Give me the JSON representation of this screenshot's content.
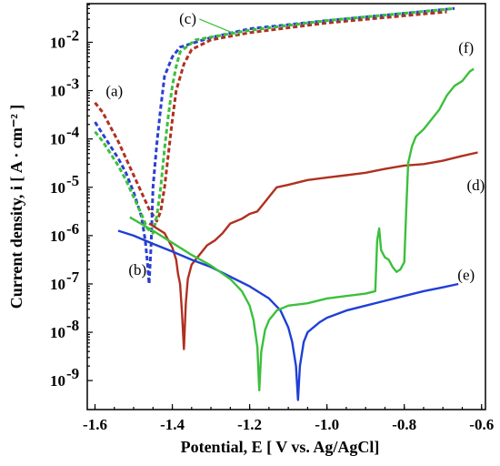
{
  "chart_data": {
    "type": "line",
    "xlabel": "Potential, E [ V vs. Ag/AgCl]",
    "ylabel": "Current density, i [ A · cm⁻² ]",
    "xlim": [
      -1.62,
      -0.59
    ],
    "ylim_log10": [
      -9.6,
      -1.2
    ],
    "y_scale": "log",
    "grid": false,
    "x_ticks": [
      {
        "value": -1.6,
        "label": "-1.6"
      },
      {
        "value": -1.4,
        "label": "-1.4"
      },
      {
        "value": -1.2,
        "label": "-1.2"
      },
      {
        "value": -1.0,
        "label": "-1.0"
      },
      {
        "value": -0.8,
        "label": "-0.8"
      },
      {
        "value": -0.6,
        "label": "-0.6"
      }
    ],
    "y_ticks": [
      {
        "exp": -2,
        "base": "10",
        "sup": "-2"
      },
      {
        "exp": -3,
        "base": "10",
        "sup": "-3"
      },
      {
        "exp": -4,
        "base": "10",
        "sup": "-4"
      },
      {
        "exp": -5,
        "base": "10",
        "sup": "-5"
      },
      {
        "exp": -6,
        "base": "10",
        "sup": "-6"
      },
      {
        "exp": -7,
        "base": "10",
        "sup": "-7"
      },
      {
        "exp": -8,
        "base": "10",
        "sup": "-8"
      },
      {
        "exp": -9,
        "base": "10",
        "sup": "-9"
      }
    ],
    "series": [
      {
        "label": "(a)",
        "color": "#b0301f",
        "style": "dashed",
        "points": [
          [
            -1.6,
            -3.25
          ],
          [
            -1.58,
            -3.45
          ],
          [
            -1.56,
            -3.75
          ],
          [
            -1.54,
            -4.05
          ],
          [
            -1.52,
            -4.4
          ],
          [
            -1.5,
            -4.75
          ],
          [
            -1.48,
            -5.1
          ],
          [
            -1.46,
            -5.45
          ],
          [
            -1.44,
            -5.7
          ],
          [
            -1.43,
            -5.5
          ],
          [
            -1.42,
            -5.0
          ],
          [
            -1.41,
            -4.3
          ],
          [
            -1.4,
            -3.6
          ],
          [
            -1.39,
            -3.0
          ],
          [
            -1.37,
            -2.45
          ],
          [
            -1.35,
            -2.15
          ],
          [
            -1.3,
            -1.95
          ],
          [
            -1.2,
            -1.8
          ],
          [
            -1.0,
            -1.6
          ],
          [
            -0.8,
            -1.45
          ],
          [
            -0.69,
            -1.37
          ]
        ]
      },
      {
        "label": "(b)",
        "color": "#2a3fd0",
        "style": "dashed",
        "points": [
          [
            -1.6,
            -3.65
          ],
          [
            -1.58,
            -3.9
          ],
          [
            -1.56,
            -4.15
          ],
          [
            -1.54,
            -4.4
          ],
          [
            -1.52,
            -4.7
          ],
          [
            -1.5,
            -5.1
          ],
          [
            -1.48,
            -5.6
          ],
          [
            -1.47,
            -6.1
          ],
          [
            -1.465,
            -6.5
          ],
          [
            -1.46,
            -7.0
          ],
          [
            -1.455,
            -6.2
          ],
          [
            -1.45,
            -5.0
          ],
          [
            -1.44,
            -4.1
          ],
          [
            -1.43,
            -3.35
          ],
          [
            -1.42,
            -2.7
          ],
          [
            -1.4,
            -2.3
          ],
          [
            -1.38,
            -2.1
          ],
          [
            -1.3,
            -1.9
          ],
          [
            -1.2,
            -1.72
          ],
          [
            -1.0,
            -1.55
          ],
          [
            -0.8,
            -1.4
          ],
          [
            -0.67,
            -1.3
          ]
        ]
      },
      {
        "label": "(c)",
        "color": "#3cc03c",
        "style": "dashed",
        "points": [
          [
            -1.6,
            -3.85
          ],
          [
            -1.58,
            -4.05
          ],
          [
            -1.56,
            -4.3
          ],
          [
            -1.54,
            -4.55
          ],
          [
            -1.52,
            -4.85
          ],
          [
            -1.5,
            -5.2
          ],
          [
            -1.48,
            -5.55
          ],
          [
            -1.465,
            -5.85
          ],
          [
            -1.45,
            -5.95
          ],
          [
            -1.44,
            -5.6
          ],
          [
            -1.43,
            -5.0
          ],
          [
            -1.42,
            -4.2
          ],
          [
            -1.41,
            -3.5
          ],
          [
            -1.4,
            -2.9
          ],
          [
            -1.39,
            -2.5
          ],
          [
            -1.38,
            -2.2
          ],
          [
            -1.34,
            -1.95
          ],
          [
            -1.2,
            -1.75
          ],
          [
            -1.0,
            -1.55
          ],
          [
            -0.8,
            -1.4
          ],
          [
            -0.67,
            -1.3
          ]
        ]
      },
      {
        "label": "(d)",
        "color": "#b0301f",
        "style": "solid",
        "points": [
          [
            -1.46,
            -5.75
          ],
          [
            -1.44,
            -5.85
          ],
          [
            -1.42,
            -5.95
          ],
          [
            -1.41,
            -6.1
          ],
          [
            -1.4,
            -6.25
          ],
          [
            -1.39,
            -6.5
          ],
          [
            -1.385,
            -6.8
          ],
          [
            -1.38,
            -7.0
          ],
          [
            -1.375,
            -7.6
          ],
          [
            -1.37,
            -8.35
          ],
          [
            -1.365,
            -7.4
          ],
          [
            -1.36,
            -6.9
          ],
          [
            -1.35,
            -6.6
          ],
          [
            -1.33,
            -6.4
          ],
          [
            -1.31,
            -6.2
          ],
          [
            -1.29,
            -6.1
          ],
          [
            -1.27,
            -5.95
          ],
          [
            -1.25,
            -5.75
          ],
          [
            -1.22,
            -5.65
          ],
          [
            -1.2,
            -5.55
          ],
          [
            -1.18,
            -5.5
          ],
          [
            -1.16,
            -5.3
          ],
          [
            -1.15,
            -5.2
          ],
          [
            -1.13,
            -5.0
          ],
          [
            -1.1,
            -4.95
          ],
          [
            -1.05,
            -4.85
          ],
          [
            -1.0,
            -4.8
          ],
          [
            -0.95,
            -4.75
          ],
          [
            -0.9,
            -4.7
          ],
          [
            -0.85,
            -4.62
          ],
          [
            -0.8,
            -4.55
          ],
          [
            -0.75,
            -4.52
          ],
          [
            -0.7,
            -4.45
          ],
          [
            -0.65,
            -4.35
          ],
          [
            -0.61,
            -4.28
          ]
        ]
      },
      {
        "label": "(e)",
        "color": "#1f3fd6",
        "style": "solid",
        "points": [
          [
            -1.54,
            -5.9
          ],
          [
            -1.5,
            -6.0
          ],
          [
            -1.45,
            -6.17
          ],
          [
            -1.4,
            -6.33
          ],
          [
            -1.35,
            -6.5
          ],
          [
            -1.3,
            -6.65
          ],
          [
            -1.25,
            -6.85
          ],
          [
            -1.2,
            -7.05
          ],
          [
            -1.15,
            -7.3
          ],
          [
            -1.12,
            -7.55
          ],
          [
            -1.1,
            -7.9
          ],
          [
            -1.09,
            -8.2
          ],
          [
            -1.08,
            -8.7
          ],
          [
            -1.075,
            -9.4
          ],
          [
            -1.07,
            -8.7
          ],
          [
            -1.06,
            -8.2
          ],
          [
            -1.05,
            -8.0
          ],
          [
            -1.02,
            -7.8
          ],
          [
            -1.0,
            -7.7
          ],
          [
            -0.95,
            -7.55
          ],
          [
            -0.9,
            -7.45
          ],
          [
            -0.85,
            -7.35
          ],
          [
            -0.8,
            -7.25
          ],
          [
            -0.75,
            -7.15
          ],
          [
            -0.7,
            -7.07
          ],
          [
            -0.66,
            -7.0
          ]
        ]
      },
      {
        "label": "(f)",
        "color": "#3cc03c",
        "style": "solid",
        "points": [
          [
            -1.51,
            -5.62
          ],
          [
            -1.45,
            -5.9
          ],
          [
            -1.4,
            -6.15
          ],
          [
            -1.35,
            -6.4
          ],
          [
            -1.3,
            -6.62
          ],
          [
            -1.25,
            -6.9
          ],
          [
            -1.22,
            -7.15
          ],
          [
            -1.2,
            -7.45
          ],
          [
            -1.19,
            -7.75
          ],
          [
            -1.18,
            -8.3
          ],
          [
            -1.175,
            -9.2
          ],
          [
            -1.17,
            -8.4
          ],
          [
            -1.16,
            -7.95
          ],
          [
            -1.15,
            -7.75
          ],
          [
            -1.13,
            -7.55
          ],
          [
            -1.1,
            -7.45
          ],
          [
            -1.05,
            -7.4
          ],
          [
            -1.0,
            -7.3
          ],
          [
            -0.95,
            -7.25
          ],
          [
            -0.9,
            -7.2
          ],
          [
            -0.875,
            -7.15
          ],
          [
            -0.87,
            -6.1
          ],
          [
            -0.865,
            -5.85
          ],
          [
            -0.86,
            -6.3
          ],
          [
            -0.85,
            -6.45
          ],
          [
            -0.84,
            -6.5
          ],
          [
            -0.83,
            -6.65
          ],
          [
            -0.82,
            -6.75
          ],
          [
            -0.81,
            -6.7
          ],
          [
            -0.8,
            -6.55
          ],
          [
            -0.795,
            -5.5
          ],
          [
            -0.79,
            -4.5
          ],
          [
            -0.78,
            -4.15
          ],
          [
            -0.77,
            -3.95
          ],
          [
            -0.75,
            -3.8
          ],
          [
            -0.73,
            -3.6
          ],
          [
            -0.71,
            -3.4
          ],
          [
            -0.69,
            -3.1
          ],
          [
            -0.67,
            -2.9
          ],
          [
            -0.65,
            -2.8
          ],
          [
            -0.63,
            -2.6
          ],
          [
            -0.62,
            -2.55
          ]
        ]
      }
    ],
    "annotations": [
      {
        "text": "(a)",
        "x": -1.55,
        "logy": -3.0
      },
      {
        "text": "(b)",
        "x": -1.49,
        "logy": -6.7
      },
      {
        "text": "(c)",
        "x": -1.36,
        "logy": -1.5
      },
      {
        "text": "(d)",
        "x": -0.615,
        "logy": -4.95
      },
      {
        "text": "(e)",
        "x": -0.64,
        "logy": -6.8
      },
      {
        "text": "(f)",
        "x": -0.64,
        "logy": -2.1
      }
    ]
  }
}
